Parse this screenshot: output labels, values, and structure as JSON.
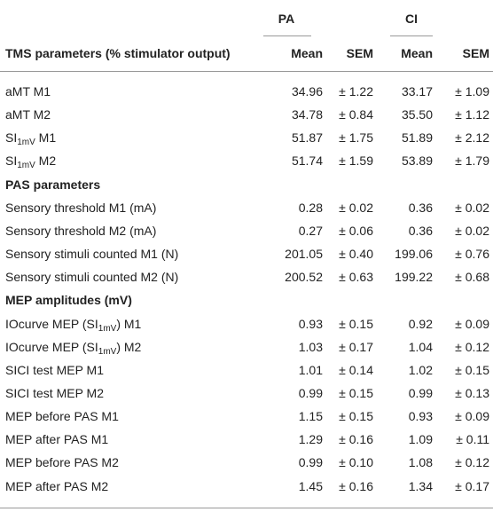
{
  "header": {
    "groups": [
      "PA",
      "CI"
    ],
    "row_label": "TMS parameters (% stimulator output)",
    "columns": [
      "Mean",
      "SEM",
      "Mean",
      "SEM"
    ]
  },
  "body": [
    {
      "label": "aMT M1",
      "cells": [
        "34.96",
        "± 1.22",
        "33.17",
        "± 1.09"
      ]
    },
    {
      "label": "aMT M2",
      "cells": [
        "34.78",
        "± 0.84",
        "35.50",
        "± 1.12"
      ]
    },
    {
      "label": [
        "SI",
        {
          "sub": "1mV"
        },
        " M1"
      ],
      "cells": [
        "51.87",
        "± 1.75",
        "51.89",
        "± 2.12"
      ]
    },
    {
      "label": [
        "SI",
        {
          "sub": "1mV"
        },
        " M2"
      ],
      "cells": [
        "51.74",
        "± 1.59",
        "53.89",
        "± 1.79"
      ]
    },
    {
      "section": "PAS parameters"
    },
    {
      "label": "Sensory threshold M1 (mA)",
      "cells": [
        "0.28",
        "± 0.02",
        "0.36",
        "± 0.02"
      ]
    },
    {
      "label": "Sensory threshold M2 (mA)",
      "cells": [
        "0.27",
        "± 0.06",
        "0.36",
        "± 0.02"
      ]
    },
    {
      "label": "Sensory stimuli counted M1 (N)",
      "cells": [
        "201.05",
        "± 0.40",
        "199.06",
        "± 0.76"
      ]
    },
    {
      "label": "Sensory stimuli counted M2 (N)",
      "cells": [
        "200.52",
        "± 0.63",
        "199.22",
        "± 0.68"
      ]
    },
    {
      "section": "MEP amplitudes (mV)"
    },
    {
      "label": [
        "IOcurve MEP (SI",
        {
          "sub": "1mV"
        },
        ") M1"
      ],
      "cells": [
        "0.93",
        "± 0.15",
        "0.92",
        "± 0.09"
      ]
    },
    {
      "label": [
        "IOcurve MEP (SI",
        {
          "sub": "1mV"
        },
        ") M2"
      ],
      "cells": [
        "1.03",
        "± 0.17",
        "1.04",
        "± 0.12"
      ]
    },
    {
      "label": "SICI test MEP M1",
      "cells": [
        "1.01",
        "± 0.14",
        "1.02",
        "± 0.15"
      ]
    },
    {
      "label": "SICI test MEP M2",
      "cells": [
        "0.99",
        "± 0.15",
        "0.99",
        "± 0.13"
      ]
    },
    {
      "label": "MEP before PAS M1",
      "cells": [
        "1.15",
        "± 0.15",
        "0.93",
        "± 0.09"
      ]
    },
    {
      "label": "MEP after PAS M1",
      "cells": [
        "1.29",
        "± 0.16",
        "1.09",
        "± 0.11"
      ]
    },
    {
      "label": "MEP before PAS M2",
      "cells": [
        "0.99",
        "± 0.10",
        "1.08",
        "± 0.12"
      ]
    },
    {
      "label": "MEP after PAS M2",
      "cells": [
        "1.45",
        "± 0.16",
        "1.34",
        "± 0.17"
      ]
    }
  ]
}
